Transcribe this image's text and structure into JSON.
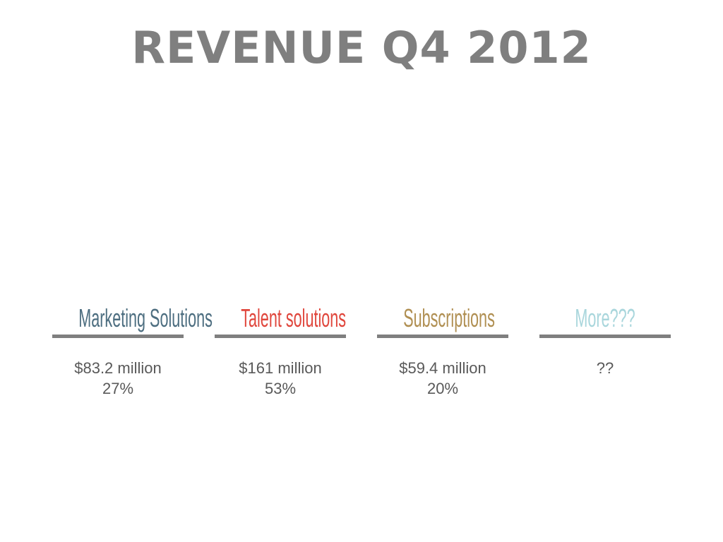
{
  "slide": {
    "title": "REVENUE Q4 2012"
  },
  "segments": [
    {
      "label": "Marketing Solutions",
      "color": "#4d6e80",
      "amount": "$83.2 million",
      "share": "27%"
    },
    {
      "label": "Talent solutions",
      "color": "#e0463c",
      "amount": "$161 million",
      "share": "53%"
    },
    {
      "label": "Subscriptions",
      "color": "#b08f52",
      "amount": "$59.4 million",
      "share": "20%"
    },
    {
      "label": "More???",
      "color": "#a9d6dc",
      "amount": "??",
      "share": ""
    }
  ]
}
